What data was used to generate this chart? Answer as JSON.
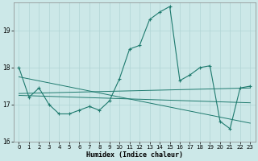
{
  "xlabel": "Humidex (Indice chaleur)",
  "background_color": "#cce8e8",
  "grid_color": "#b0d5d5",
  "line_color": "#1e7a6e",
  "xlim": [
    -0.5,
    23.5
  ],
  "ylim": [
    16.0,
    19.75
  ],
  "yticks": [
    16,
    17,
    18,
    19
  ],
  "xticks": [
    0,
    1,
    2,
    3,
    4,
    5,
    6,
    7,
    8,
    9,
    10,
    11,
    12,
    13,
    14,
    15,
    16,
    17,
    18,
    19,
    20,
    21,
    22,
    23
  ],
  "y_main": [
    18.0,
    17.2,
    17.45,
    17.0,
    16.75,
    16.75,
    16.85,
    16.95,
    16.85,
    17.1,
    17.7,
    18.5,
    18.6,
    19.3,
    19.5,
    19.65,
    17.65,
    17.8,
    18.0,
    18.05,
    16.55,
    16.35,
    17.45,
    17.5
  ],
  "reg1": [
    17.75,
    16.5
  ],
  "reg2": [
    17.3,
    17.45
  ],
  "reg3": [
    17.25,
    17.05
  ]
}
